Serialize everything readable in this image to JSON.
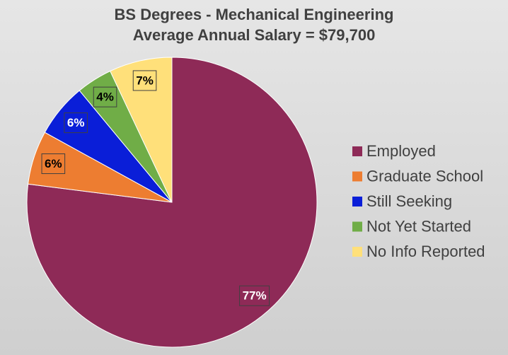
{
  "chart_data": {
    "type": "pie",
    "title": "BS Degrees - Mechanical Engineering",
    "subtitle": "Average Annual Salary = $79,700",
    "categories": [
      "Employed",
      "Graduate School",
      "Still Seeking",
      "Not Yet Started",
      "No Info Reported"
    ],
    "values": [
      77,
      6,
      6,
      4,
      7
    ],
    "value_labels": [
      "77%",
      "6%",
      "6%",
      "4%",
      "7%"
    ],
    "colors": [
      "#8e2a57",
      "#ed7d31",
      "#0a1ed8",
      "#70ad47",
      "#ffe07a"
    ],
    "legend": "right"
  }
}
